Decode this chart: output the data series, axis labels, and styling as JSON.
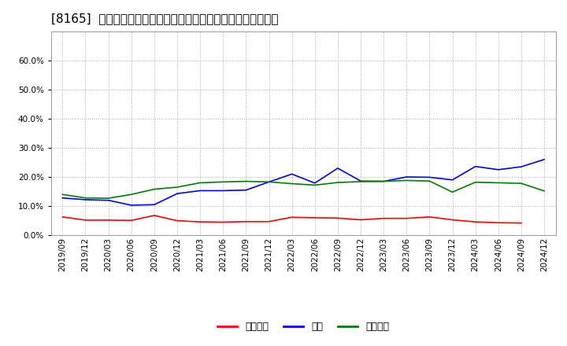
{
  "title": "[8165]  売上債権、在庫、買入債務の総資産に対する比率の推移",
  "dates": [
    "2019/09",
    "2019/12",
    "2020/03",
    "2020/06",
    "2020/09",
    "2020/12",
    "2021/03",
    "2021/06",
    "2021/09",
    "2021/12",
    "2022/03",
    "2022/06",
    "2022/09",
    "2022/12",
    "2023/03",
    "2023/06",
    "2023/09",
    "2023/12",
    "2024/03",
    "2024/06",
    "2024/09",
    "2024/12"
  ],
  "urikake": [
    0.063,
    0.052,
    0.052,
    0.051,
    0.068,
    0.05,
    0.046,
    0.045,
    0.047,
    0.047,
    0.062,
    0.06,
    0.059,
    0.053,
    0.058,
    0.058,
    0.063,
    0.053,
    0.046,
    0.043,
    0.042,
    null
  ],
  "zaiko": [
    0.128,
    0.122,
    0.12,
    0.103,
    0.105,
    0.143,
    0.153,
    0.153,
    0.155,
    0.183,
    0.21,
    0.179,
    0.23,
    0.186,
    0.185,
    0.2,
    0.199,
    0.19,
    0.236,
    0.225,
    0.235,
    0.26
  ],
  "kaiire": [
    0.14,
    0.128,
    0.127,
    0.14,
    0.158,
    0.165,
    0.18,
    0.183,
    0.185,
    0.183,
    0.177,
    0.172,
    0.181,
    0.184,
    0.185,
    0.188,
    0.186,
    0.148,
    0.182,
    0.18,
    0.178,
    0.152
  ],
  "urikake_color": "#ff0000",
  "zaiko_color": "#0000ff",
  "kaiire_color": "#008000",
  "bg_color": "#ffffff",
  "plot_bg_color": "#ffffff",
  "grid_color": "#aaaaaa",
  "ylim": [
    0.0,
    0.7
  ],
  "yticks": [
    0.0,
    0.1,
    0.2,
    0.3,
    0.4,
    0.5,
    0.6
  ],
  "legend_labels": [
    "売上債権",
    "在庫",
    "買入債務"
  ],
  "title_fontsize": 11,
  "tick_fontsize": 7.5,
  "legend_fontsize": 9
}
